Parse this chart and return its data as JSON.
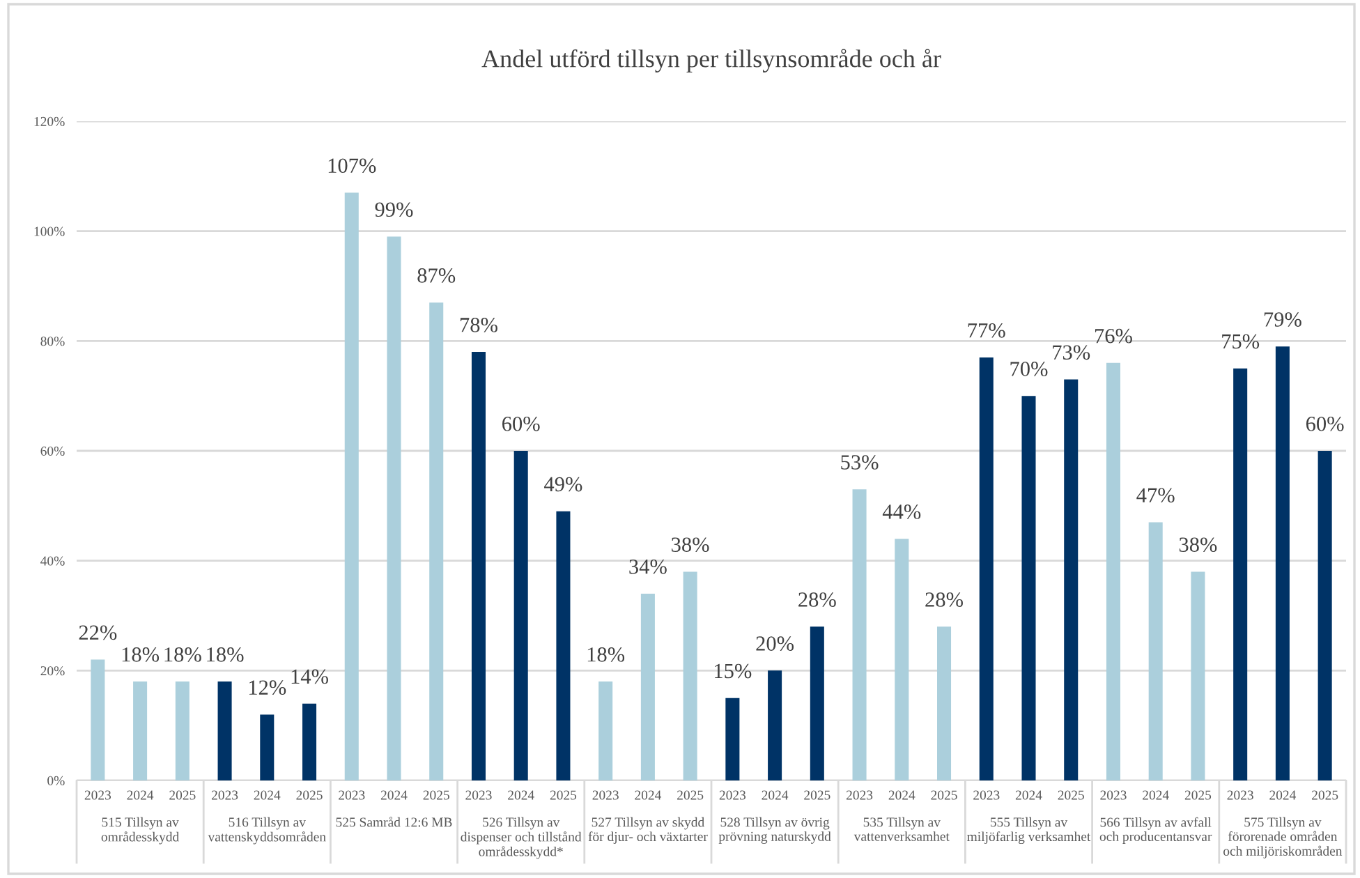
{
  "chart_data": {
    "type": "bar",
    "title": "Andel utförd tillsyn per tillsynsområde och år",
    "categories": [
      "515 Tillsyn av områdesskydd",
      "516 Tillsyn av vattenskyddsområden",
      "525 Samråd 12:6 MB",
      "526 Tillsyn av dispenser och tillstånd områdesskydd*",
      "527 Tillsyn av skydd för djur- och växtarter",
      "528 Tillsyn av övrig prövning naturskydd",
      "535 Tillsyn av vattenverksamhet",
      "555 Tillsyn av miljöfarlig verksamhet",
      "566 Tillsyn av avfall och producentansvar",
      "575 Tillsyn av förorenade områden och miljöriskområden"
    ],
    "series": [
      {
        "name": "2023",
        "colors": [
          "#abcfdc",
          "#003366",
          "#abcfdc",
          "#003366",
          "#abcfdc",
          "#003366",
          "#abcfdc",
          "#003366",
          "#abcfdc",
          "#003366"
        ],
        "values": [
          22,
          18,
          107,
          78,
          18,
          15,
          53,
          77,
          76,
          75
        ],
        "value_labels": [
          "22%",
          "18%",
          "107%",
          "78%",
          "18%",
          "15%",
          "53%",
          "77%",
          "76%",
          "75%"
        ]
      },
      {
        "name": "2024",
        "colors": [
          "#abcfdc",
          "#003366",
          "#abcfdc",
          "#003366",
          "#abcfdc",
          "#003366",
          "#abcfdc",
          "#003366",
          "#abcfdc",
          "#003366"
        ],
        "values": [
          18,
          12,
          99,
          60,
          34,
          20,
          44,
          70,
          47,
          79
        ],
        "value_labels": [
          "18%",
          "12%",
          "99%",
          "60%",
          "34%",
          "20%",
          "44%",
          "70%",
          "47%",
          "79%"
        ]
      },
      {
        "name": "2025",
        "colors": [
          "#abcfdc",
          "#003366",
          "#abcfdc",
          "#003366",
          "#abcfdc",
          "#003366",
          "#abcfdc",
          "#003366",
          "#abcfdc",
          "#003366"
        ],
        "values": [
          18,
          14,
          87,
          49,
          38,
          28,
          28,
          73,
          38,
          60
        ],
        "value_labels": [
          "18%",
          "14%",
          "87%",
          "49%",
          "38%",
          "28%",
          "28%",
          "73%",
          "38%",
          "60%"
        ]
      }
    ],
    "ylim": [
      0,
      120
    ],
    "yticks": [
      {
        "value": 0,
        "label": "0%"
      },
      {
        "value": 20,
        "label": "20%"
      },
      {
        "value": 40,
        "label": "40%"
      },
      {
        "value": 60,
        "label": "60%"
      },
      {
        "value": 80,
        "label": "80%"
      },
      {
        "value": 100,
        "label": "100%"
      },
      {
        "value": 120,
        "label": "120%"
      }
    ],
    "grid": "y"
  }
}
